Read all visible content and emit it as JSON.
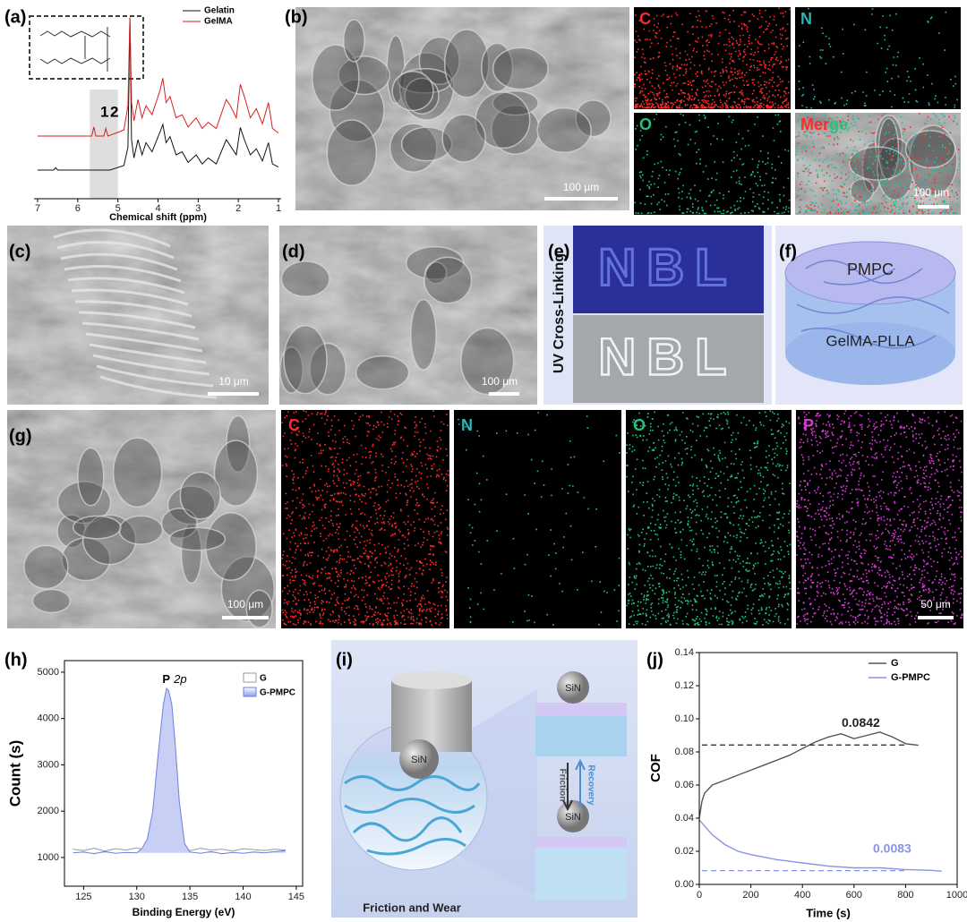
{
  "panel_labels": [
    "(a)",
    "(b)",
    "(c)",
    "(d)",
    "(e)",
    "(f)",
    "(g)",
    "(h)",
    "(i)",
    "(j)"
  ],
  "chart_data": [
    {
      "type": "line",
      "xlabel": "Chemical shift (ppm)",
      "xlim": [
        7,
        1
      ],
      "xticks": [
        7,
        6,
        5,
        4,
        3,
        2,
        1
      ],
      "highlight": [
        5.7,
        5.0
      ],
      "peak_labels": [
        "1",
        "2"
      ],
      "series": [
        {
          "name": "Gelatin",
          "color": "#111111",
          "x": [
            7,
            6.6,
            6.55,
            6.5,
            5.2,
            4.85,
            4.75,
            4.7,
            4.66,
            4.6,
            4.5,
            4.4,
            4.3,
            4.15,
            3.95,
            3.88,
            3.8,
            3.7,
            3.55,
            3.4,
            3.25,
            3.05,
            2.9,
            2.75,
            2.55,
            2.3,
            2.2,
            2.05,
            1.95,
            1.85,
            1.7,
            1.55,
            1.4,
            1.25,
            1.15,
            1.0
          ],
          "values": [
            0,
            0,
            1.5,
            0,
            0,
            3,
            15,
            100,
            20,
            8,
            20,
            10,
            18,
            12,
            25,
            30,
            18,
            22,
            10,
            12,
            5,
            10,
            4,
            8,
            4,
            20,
            16,
            10,
            28,
            20,
            10,
            14,
            6,
            18,
            4,
            2
          ]
        },
        {
          "name": "GelMA",
          "color": "#d62020",
          "x": [
            7,
            5.65,
            5.6,
            5.55,
            5.35,
            5.3,
            5.25,
            4.85,
            4.75,
            4.7,
            4.66,
            4.6,
            4.5,
            4.4,
            4.3,
            4.15,
            3.95,
            3.88,
            3.8,
            3.7,
            3.55,
            3.4,
            3.25,
            3.05,
            2.9,
            2.75,
            2.55,
            2.3,
            2.2,
            2.05,
            1.95,
            1.85,
            1.7,
            1.55,
            1.4,
            1.25,
            1.15,
            1.0
          ],
          "values": [
            0,
            0,
            6,
            0,
            0,
            5,
            0,
            4,
            20,
            78,
            22,
            10,
            24,
            12,
            20,
            14,
            30,
            38,
            22,
            26,
            12,
            14,
            6,
            12,
            5,
            9,
            5,
            24,
            20,
            12,
            34,
            26,
            12,
            18,
            8,
            22,
            5,
            2
          ]
        }
      ]
    },
    {
      "type": "area-line",
      "xlabel": "Binding Energy (eV)",
      "ylabel": "Count (s)",
      "annotation": [
        "P",
        "2p"
      ],
      "xlim": [
        123.2,
        145.6
      ],
      "xticks": [
        125,
        130,
        135,
        140,
        145
      ],
      "ylim": [
        380,
        5250
      ],
      "yticks": [
        1000,
        2000,
        3000,
        4000,
        5000
      ],
      "series": [
        {
          "name": "G",
          "color": "#9a9a9a",
          "x": [
            124,
            125,
            126,
            127,
            128,
            129,
            130,
            131,
            132,
            133,
            134,
            135,
            136,
            137,
            138,
            139,
            140,
            141,
            142,
            143,
            144
          ],
          "values": [
            1180,
            1150,
            1200,
            1140,
            1190,
            1160,
            1210,
            1150,
            1180,
            1170,
            1190,
            1150,
            1200,
            1160,
            1180,
            1140,
            1190,
            1170,
            1150,
            1180,
            1160
          ]
        },
        {
          "name": "G-PMPC",
          "color": "#6f7fe0",
          "fill": "#c8cff5",
          "x": [
            124,
            125,
            126,
            127,
            128,
            129,
            130,
            130.5,
            131,
            131.5,
            132,
            132.5,
            132.8,
            133,
            133.3,
            133.6,
            134,
            134.5,
            135,
            136,
            137,
            138,
            139,
            140,
            141,
            142,
            143,
            144
          ],
          "values": [
            1100,
            1120,
            1080,
            1130,
            1090,
            1110,
            1100,
            1200,
            1400,
            2000,
            3200,
            4300,
            4650,
            4600,
            4300,
            3500,
            2200,
            1300,
            1120,
            1090,
            1130,
            1080,
            1110,
            1090,
            1120,
            1100,
            1130,
            1150
          ]
        }
      ]
    },
    {
      "type": "line",
      "xlabel": "Time (s)",
      "ylabel": "COF",
      "xlim": [
        0,
        1000
      ],
      "xticks": [
        0,
        200,
        400,
        600,
        800,
        1000
      ],
      "ylim": [
        0,
        0.14
      ],
      "yticks": [
        {
          "value": 0,
          "label": "0.00"
        },
        0.02,
        0.04,
        0.06,
        0.08,
        {
          "value": 0.1,
          "label": "0.10"
        },
        0.12,
        0.14
      ],
      "series": [
        {
          "name": "G",
          "color": "#555555",
          "x": [
            0,
            10,
            20,
            50,
            100,
            150,
            200,
            250,
            300,
            350,
            400,
            450,
            500,
            550,
            600,
            650,
            700,
            750,
            800,
            850
          ],
          "values": [
            0.04,
            0.05,
            0.055,
            0.06,
            0.063,
            0.066,
            0.069,
            0.072,
            0.075,
            0.078,
            0.082,
            0.086,
            0.089,
            0.091,
            0.088,
            0.09,
            0.092,
            0.089,
            0.085,
            0.084
          ]
        },
        {
          "name": "G-PMPC",
          "color": "#8a94e6",
          "x": [
            0,
            50,
            100,
            150,
            200,
            300,
            400,
            500,
            600,
            700,
            800,
            900,
            940
          ],
          "values": [
            0.039,
            0.03,
            0.024,
            0.02,
            0.018,
            0.015,
            0.013,
            0.011,
            0.01,
            0.01,
            0.009,
            0.0085,
            0.008
          ]
        }
      ],
      "annotations": [
        {
          "value": 0.0842,
          "label": "0.0842",
          "color": "#222222"
        },
        {
          "value": 0.0083,
          "label": "0.0083",
          "color": "#8a94e6"
        }
      ]
    }
  ],
  "sem": {
    "b": "100 μm",
    "c": "10 μm",
    "d": "100 μm",
    "g": "100 μm"
  },
  "eds_b": {
    "elements": [
      {
        "label": "C",
        "color": "#ff2a2a"
      },
      {
        "label": "N",
        "color": "#2bb5b5"
      },
      {
        "label": "O",
        "color": "#22c47a"
      }
    ],
    "merge": [
      {
        "label": "Mer",
        "color": "#ff2a2a"
      },
      {
        "label": "ge",
        "color": "#22c47a"
      }
    ],
    "scale_bar": "100 μm"
  },
  "panel_e": {
    "title": "UV Cross-Linking",
    "text_top": "NBL",
    "text_bottom": "NBL"
  },
  "panel_f": {
    "top": "PMPC",
    "body": "GelMA-PLLA"
  },
  "eds_g": {
    "elements": [
      {
        "label": "C",
        "color": "#ff2a2a"
      },
      {
        "label": "N",
        "color": "#2bb5b5"
      },
      {
        "label": "O",
        "color": "#22c47a"
      },
      {
        "label": "P",
        "color": "#d63bd6"
      }
    ],
    "scale_bar": "50 μm"
  },
  "panel_i": {
    "ball_labels": [
      "SiN",
      "SiN",
      "SiN"
    ],
    "friction": "Friction",
    "recovery": "Recovery",
    "caption": "Friction and Wear"
  }
}
